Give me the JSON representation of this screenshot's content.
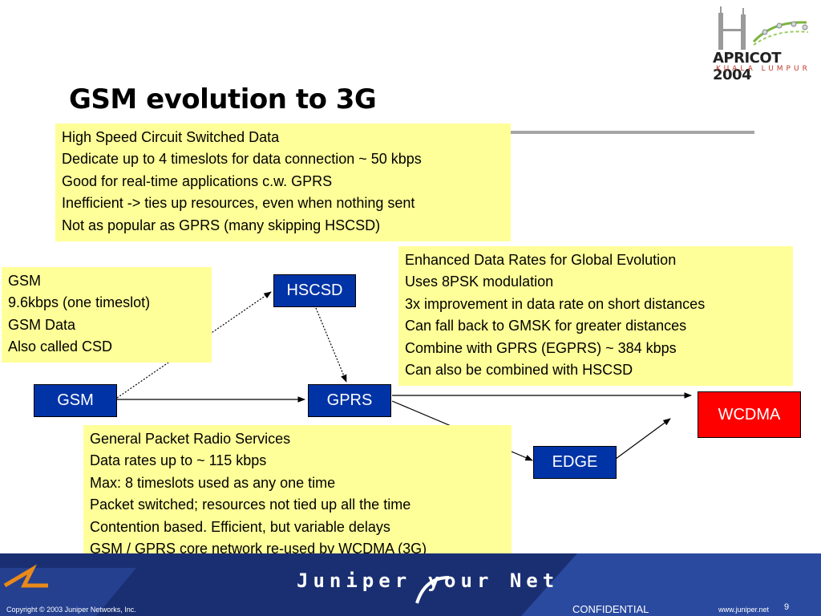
{
  "slide": {
    "title": "GSM evolution to 3G",
    "page_number": "9"
  },
  "logo": {
    "name": "APRICOT 2004",
    "subtitle": "KUALA LUMPUR"
  },
  "notes": {
    "hscsd": {
      "head": "High Speed Circuit Switched Data",
      "lines": [
        "Dedicate up to 4 timeslots for data connection ~ 50 kbps",
        "Good for real-time applications c.w. GPRS",
        "Inefficient -> ties up resources, even when nothing sent",
        "Not as popular as GPRS (many skipping HSCSD)"
      ]
    },
    "gsm": {
      "head": "GSM",
      "lines": [
        "9.6kbps (one timeslot)",
        "GSM Data",
        "Also called CSD"
      ]
    },
    "edge": {
      "head": "Enhanced Data Rates for Global Evolution",
      "lines": [
        "Uses 8PSK modulation",
        "3x improvement in data rate on short distances",
        "Can fall back to GMSK for greater distances",
        "Combine with GPRS (EGPRS) ~ 384 kbps",
        "Can also be combined with HSCSD"
      ]
    },
    "gprs": {
      "head": "General Packet Radio Services",
      "lines": [
        "Data rates up to ~ 115 kbps",
        "Max: 8 timeslots used as any one time",
        "Packet switched; resources not tied up all the time",
        "Contention based.  Efficient, but variable delays",
        "GSM / GPRS core network re-used by WCDMA (3G)"
      ]
    }
  },
  "nodes": {
    "gsm": "GSM",
    "hscsd": "HSCSD",
    "gprs": "GPRS",
    "edge": "EDGE",
    "wcdma": "WCDMA"
  },
  "colors": {
    "node_blue": "#0033a6",
    "node_red": "#ff0000",
    "note_yellow": "#ffff99",
    "footer_navy": "#1a2f72"
  },
  "footer": {
    "brand": "Juniper your Net",
    "copyright": "Copyright © 2003 Juniper Networks, Inc.",
    "confidential": "CONFIDENTIAL",
    "url": "www.juniper.net"
  }
}
